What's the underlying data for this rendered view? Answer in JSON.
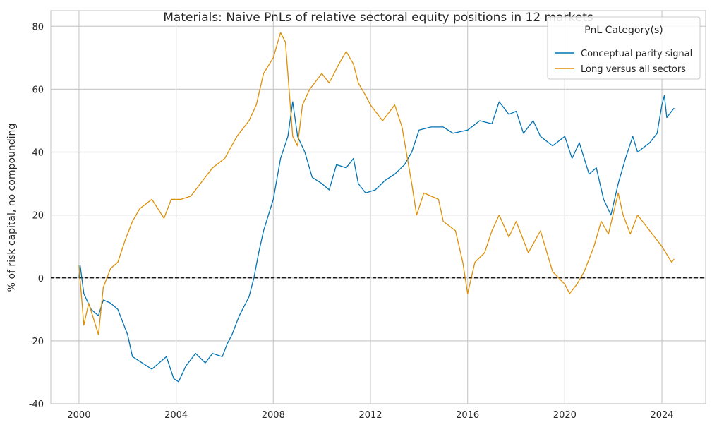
{
  "chart_data": {
    "type": "line",
    "title": "Materials: Naive PnLs of relative sectoral equity positions in 12 markets",
    "xlabel": "",
    "ylabel": "% of risk capital, no compounding",
    "xlim": [
      1998.84,
      2025.8
    ],
    "ylim": [
      -40,
      85
    ],
    "xticks": [
      2000,
      2004,
      2008,
      2012,
      2016,
      2020,
      2024
    ],
    "yticks": [
      -40,
      -20,
      0,
      20,
      40,
      60,
      80
    ],
    "grid": true,
    "reference_line": {
      "y": 0,
      "style": "dashed",
      "color": "#000000"
    },
    "legend": {
      "title": "PnL Category(s)",
      "placement": "top-right"
    },
    "series": [
      {
        "name": "Conceptual parity signal",
        "color": "#0173b2",
        "x": [
          2000.0,
          2000.05,
          2000.2,
          2000.5,
          2000.8,
          2001.0,
          2001.3,
          2001.6,
          2002.0,
          2002.2,
          2002.6,
          2003.0,
          2003.3,
          2003.6,
          2003.9,
          2004.1,
          2004.4,
          2004.8,
          2005.2,
          2005.5,
          2005.9,
          2006.1,
          2006.3,
          2006.6,
          2007.0,
          2007.2,
          2007.4,
          2007.6,
          2008.0,
          2008.3,
          2008.6,
          2008.8,
          2009.0,
          2009.3,
          2009.6,
          2010.0,
          2010.3,
          2010.6,
          2011.0,
          2011.3,
          2011.5,
          2011.8,
          2012.2,
          2012.6,
          2013.0,
          2013.4,
          2013.7,
          2014.0,
          2014.5,
          2015.0,
          2015.4,
          2016.0,
          2016.5,
          2017.0,
          2017.3,
          2017.7,
          2018.0,
          2018.3,
          2018.7,
          2019.0,
          2019.5,
          2020.0,
          2020.3,
          2020.6,
          2021.0,
          2021.3,
          2021.6,
          2021.9,
          2022.2,
          2022.5,
          2022.8,
          2023.0,
          2023.5,
          2023.8,
          2024.0,
          2024.1,
          2024.2,
          2024.5
        ],
        "y": [
          0,
          4,
          -5,
          -10,
          -12,
          -7,
          -8,
          -10,
          -18,
          -25,
          -27,
          -29,
          -27,
          -25,
          -32,
          -33,
          -28,
          -24,
          -27,
          -24,
          -25,
          -21,
          -18,
          -12,
          -6,
          0,
          8,
          15,
          25,
          38,
          45,
          56,
          45,
          40,
          32,
          30,
          28,
          36,
          35,
          38,
          30,
          27,
          28,
          31,
          33,
          36,
          40,
          47,
          48,
          48,
          46,
          47,
          50,
          49,
          56,
          52,
          53,
          46,
          50,
          45,
          42,
          45,
          38,
          43,
          33,
          35,
          25,
          20,
          30,
          38,
          45,
          40,
          43,
          46,
          55,
          58,
          51,
          54
        ]
      },
      {
        "name": "Long versus all sectors",
        "color": "#de8f05",
        "x": [
          2000.0,
          2000.2,
          2000.4,
          2000.8,
          2001.0,
          2001.3,
          2001.6,
          2001.9,
          2002.2,
          2002.5,
          2003.0,
          2003.5,
          2003.8,
          2004.2,
          2004.6,
          2005.0,
          2005.5,
          2006.0,
          2006.5,
          2007.0,
          2007.3,
          2007.6,
          2008.0,
          2008.3,
          2008.5,
          2008.8,
          2009.0,
          2009.2,
          2009.5,
          2010.0,
          2010.3,
          2010.7,
          2011.0,
          2011.3,
          2011.5,
          2011.8,
          2012.0,
          2012.5,
          2013.0,
          2013.3,
          2013.7,
          2013.9,
          2014.2,
          2014.8,
          2015.0,
          2015.5,
          2015.8,
          2016.0,
          2016.3,
          2016.7,
          2017.0,
          2017.3,
          2017.7,
          2018.0,
          2018.5,
          2019.0,
          2019.5,
          2020.0,
          2020.2,
          2020.5,
          2020.8,
          2021.2,
          2021.5,
          2021.8,
          2022.2,
          2022.4,
          2022.7,
          2023.0,
          2023.5,
          2024.0,
          2024.4,
          2024.5
        ],
        "y": [
          4,
          -15,
          -8,
          -18,
          -3,
          3,
          5,
          12,
          18,
          22,
          25,
          19,
          25,
          25,
          26,
          30,
          35,
          38,
          45,
          50,
          55,
          65,
          70,
          78,
          75,
          45,
          42,
          55,
          60,
          65,
          62,
          68,
          72,
          68,
          62,
          58,
          55,
          50,
          55,
          48,
          30,
          20,
          27,
          25,
          18,
          15,
          5,
          -5,
          5,
          8,
          15,
          20,
          13,
          18,
          8,
          15,
          2,
          -2,
          -5,
          -2,
          2,
          10,
          18,
          14,
          27,
          20,
          14,
          20,
          15,
          10,
          5,
          6
        ]
      }
    ]
  }
}
